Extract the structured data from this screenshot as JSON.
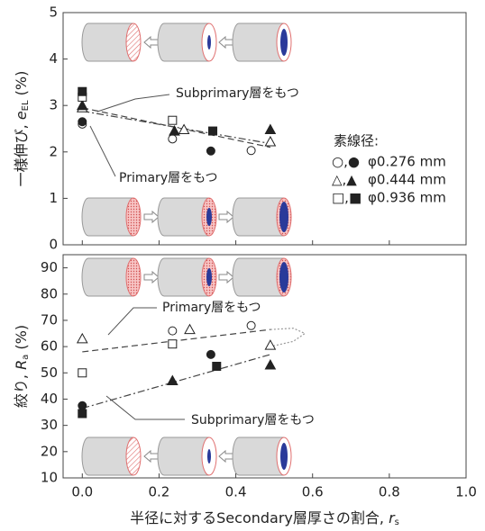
{
  "chart_data": [
    {
      "type": "scatter",
      "y_label": {
        "text": "一様伸び, ",
        "var": "e",
        "sub": "EL",
        "unit": " (%)"
      },
      "xlim": [
        -0.05,
        1.0
      ],
      "ylim": [
        0,
        5
      ],
      "yticks": [
        0,
        1,
        2,
        3,
        4,
        5
      ],
      "legend_title": "素線径:",
      "series": [
        {
          "name": "φ0.276 mm",
          "symbols": "○,●",
          "marker": "circle",
          "open": {
            "x": [
              0,
              0.235,
              0.44
            ],
            "y": [
              2.6,
              2.28,
              2.03
            ]
          },
          "filled": {
            "x": [
              0,
              0.335
            ],
            "y": [
              2.65,
              2.02
            ]
          }
        },
        {
          "name": "φ0.444 mm",
          "symbols": "△,▲",
          "marker": "triangle",
          "open": {
            "x": [
              0,
              0.265,
              0.49
            ],
            "y": [
              2.95,
              2.48,
              2.22
            ]
          },
          "filled": {
            "x": [
              0,
              0.24,
              0.49
            ],
            "y": [
              3.0,
              2.45,
              2.48
            ]
          }
        },
        {
          "name": "φ0.936 mm",
          "symbols": "□,■",
          "marker": "square",
          "open": {
            "x": [
              0,
              0.235
            ],
            "y": [
              3.18,
              2.68
            ]
          },
          "filled": {
            "x": [
              0,
              0.34
            ],
            "y": [
              3.3,
              2.45
            ]
          }
        }
      ],
      "trend_lines": [
        {
          "style": "dashed",
          "x": [
            0,
            0.49
          ],
          "y": [
            2.95,
            2.1
          ]
        },
        {
          "style": "dashdot",
          "x": [
            0,
            0.49
          ],
          "y": [
            2.88,
            2.18
          ]
        }
      ],
      "annotations": [
        "Subprimary層をもつ",
        "Primary層をもつ"
      ]
    },
    {
      "type": "scatter",
      "y_label": {
        "text": "絞り, ",
        "var": "R",
        "sub": "a",
        "unit": " (%)"
      },
      "x_label": {
        "text": "半径に対するSecondary層厚さの割合, ",
        "var": "r",
        "sub": "s"
      },
      "xlim": [
        -0.05,
        1.0
      ],
      "ylim": [
        10,
        95
      ],
      "xticks": [
        {
          "value": 0,
          "label": "0.0"
        },
        {
          "value": 0.2,
          "label": "0.2"
        },
        {
          "value": 0.4,
          "label": "0.4"
        },
        {
          "value": 0.6,
          "label": "0.6"
        },
        {
          "value": 0.8,
          "label": "0.8"
        },
        {
          "value": 1,
          "label": "1.0"
        }
      ],
      "yticks": [
        10,
        20,
        30,
        40,
        50,
        60,
        70,
        80,
        90
      ],
      "series": [
        {
          "marker": "circle",
          "open": {
            "x": [
              0.235,
              0.44
            ],
            "y": [
              66,
              68
            ]
          },
          "filled": {
            "x": [
              0,
              0.335
            ],
            "y": [
              37.5,
              57
            ]
          }
        },
        {
          "marker": "triangle",
          "open": {
            "x": [
              0,
              0.28,
              0.49
            ],
            "y": [
              63,
              66.5,
              60.5
            ]
          },
          "filled": {
            "x": [
              0.235,
              0.49
            ],
            "y": [
              47,
              53
            ]
          }
        },
        {
          "marker": "square",
          "open": {
            "x": [
              0,
              0.235
            ],
            "y": [
              50,
              61
            ]
          },
          "filled": {
            "x": [
              0,
              0.35
            ],
            "y": [
              34.5,
              52.5
            ]
          }
        }
      ],
      "trend_lines": [
        {
          "style": "dashed",
          "x": [
            0,
            0.49
          ],
          "y": [
            58,
            66.5
          ]
        },
        {
          "style": "dotted",
          "x": [
            0.49,
            0.55,
            0.58,
            0.55,
            0.49
          ],
          "y": [
            66.5,
            67,
            65,
            62,
            60
          ]
        },
        {
          "style": "dashdot",
          "x": [
            0,
            0.49
          ],
          "y": [
            36.5,
            57
          ]
        }
      ],
      "annotations": [
        "Primary層をもつ",
        "Subprimary層をもつ"
      ]
    }
  ]
}
